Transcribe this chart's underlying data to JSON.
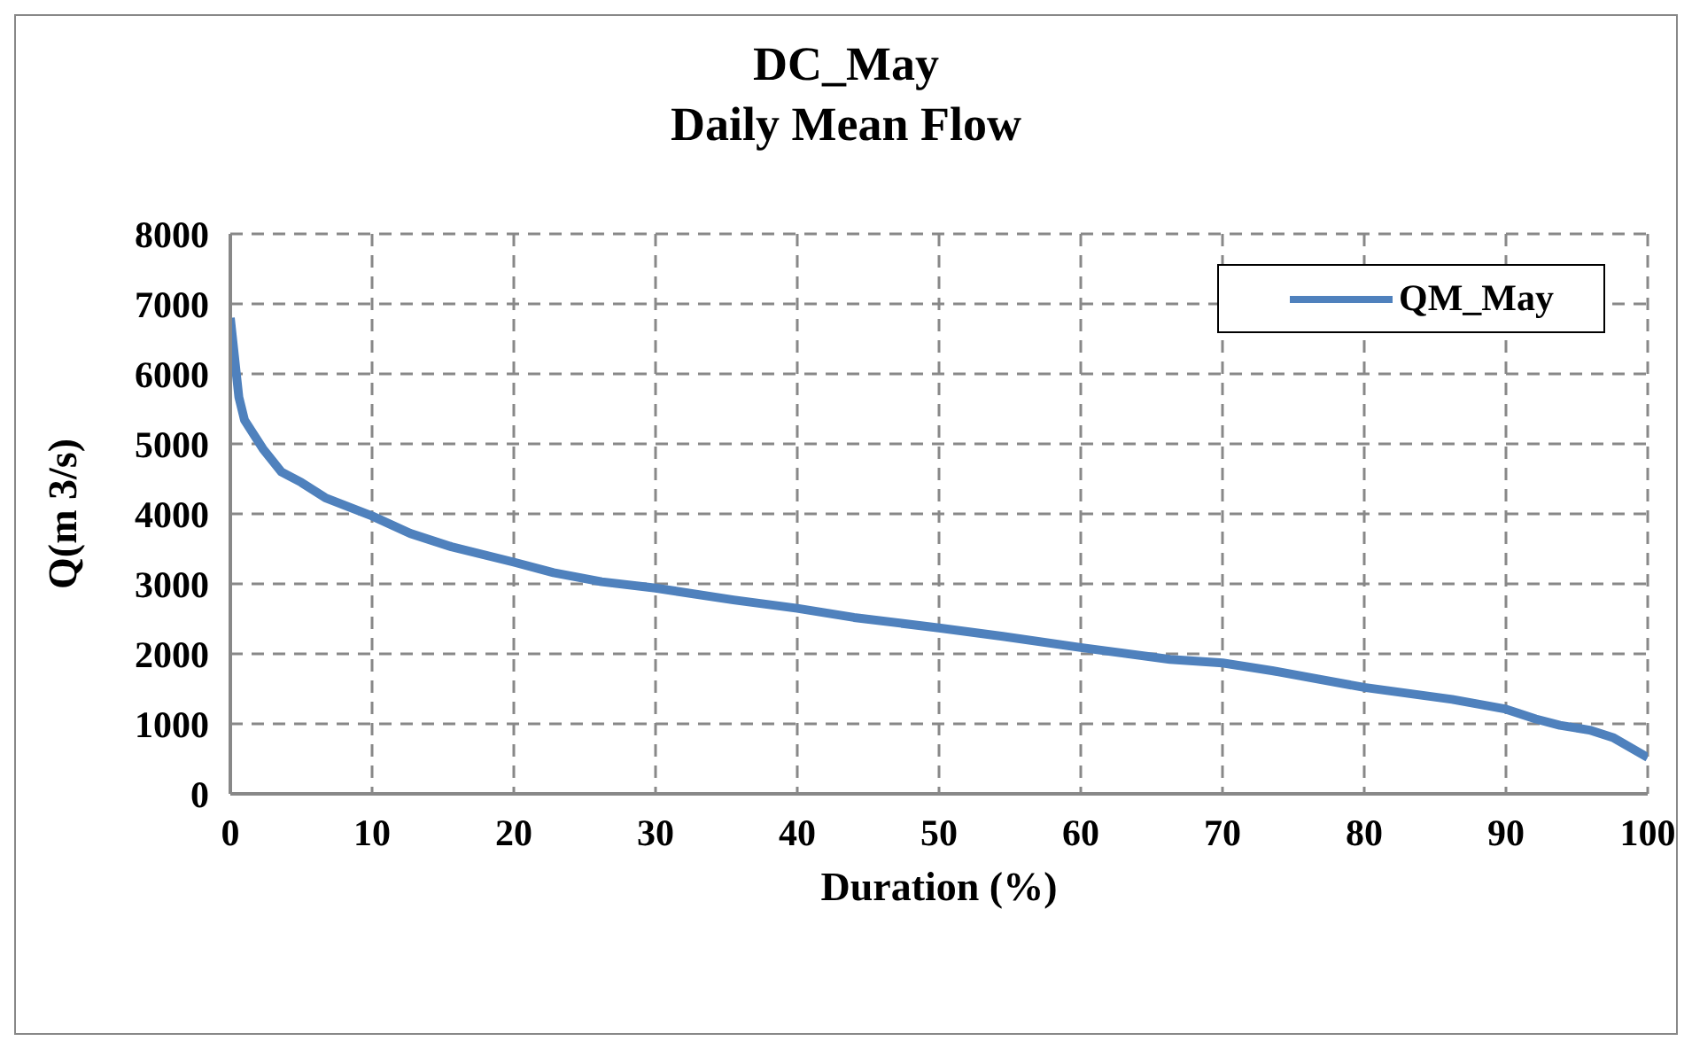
{
  "chart_data": {
    "type": "line",
    "title": "DC_May\nDaily Mean Flow",
    "xlabel": "Duration (%)",
    "ylabel": "Q(m 3/s)",
    "xlim": [
      0,
      100
    ],
    "xticks": [
      0,
      10,
      20,
      30,
      40,
      50,
      60,
      70,
      80,
      90,
      100
    ],
    "ylim": [
      0,
      8000
    ],
    "yticks": [
      0,
      1000,
      2000,
      3000,
      4000,
      5000,
      6000,
      7000,
      8000
    ],
    "grid": true,
    "legend": "top right",
    "marker": "none",
    "line_style": "solid",
    "series": [
      {
        "name": "QM_May",
        "color": "#4f81bd",
        "x": [
          0,
          0.6,
          1.0,
          2.3,
          3.6,
          5.0,
          6.7,
          10,
          12.7,
          15.6,
          20,
          22.8,
          26.2,
          30,
          35.5,
          40,
          44,
          50,
          54.5,
          60,
          66.3,
          70,
          73.5,
          80,
          86.2,
          90,
          92.1,
          93.8,
          95.9,
          97.6,
          100
        ],
        "values": [
          6800,
          5670,
          5340,
          4930,
          4600,
          4450,
          4230,
          3970,
          3720,
          3530,
          3310,
          3160,
          3030,
          2940,
          2770,
          2650,
          2520,
          2370,
          2250,
          2090,
          1920,
          1870,
          1760,
          1520,
          1350,
          1210,
          1070,
          980,
          910,
          800,
          520
        ]
      }
    ]
  }
}
